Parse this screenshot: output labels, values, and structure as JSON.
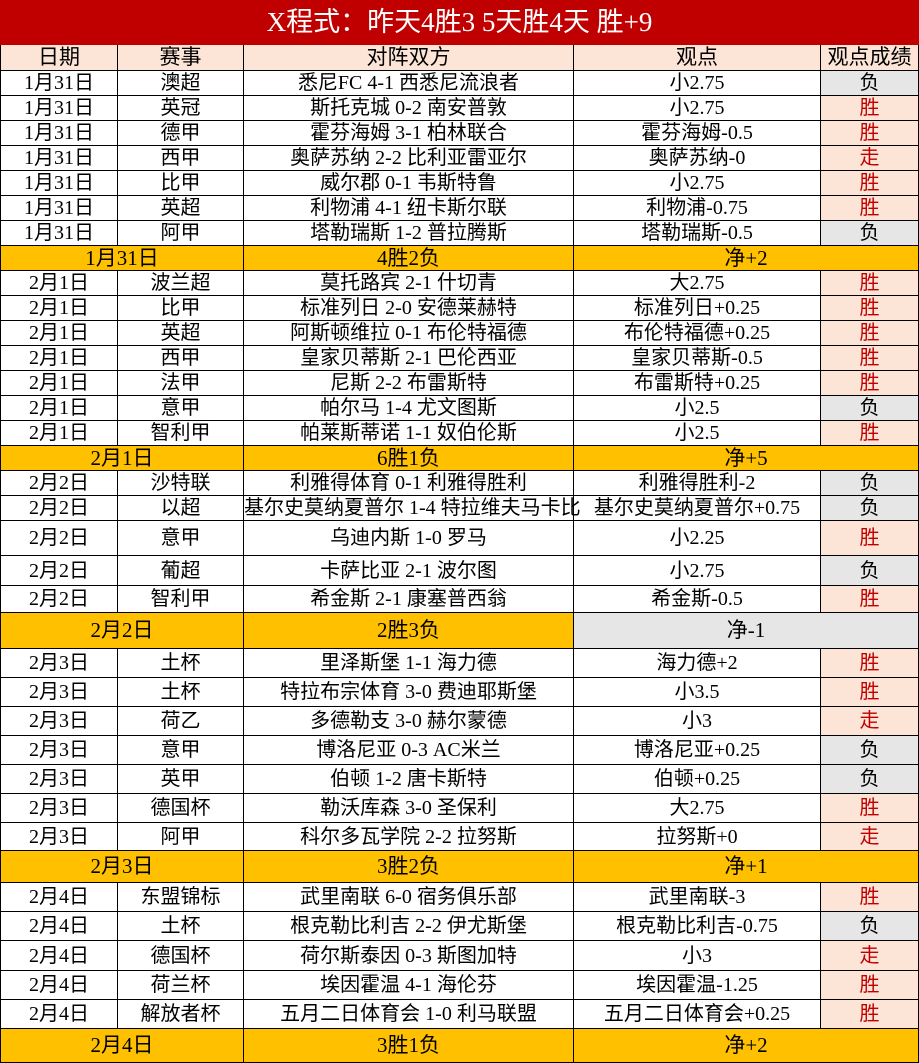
{
  "title": "X程式：昨天4胜3 5天胜4天 胜+9",
  "headers": [
    "日期",
    "赛事",
    "对阵双方",
    "观点",
    "观点成绩"
  ],
  "colors": {
    "title_bg": "#C00000",
    "header_bg": "#FCE4D6",
    "summary_bg": "#FFC000",
    "win_bg": "#FCE4D6",
    "win_text": "#C00000",
    "lose_bg": "#E7E6E6"
  },
  "groups": [
    {
      "rows": [
        [
          "1月31日",
          "澳超",
          "悉尼FC 4-1 西悉尼流浪者",
          "小2.75",
          "负"
        ],
        [
          "1月31日",
          "英冠",
          "斯托克城 0-2 南安普敦",
          "小2.75",
          "胜"
        ],
        [
          "1月31日",
          "德甲",
          "霍芬海姆 3-1 柏林联合",
          "霍芬海姆-0.5",
          "胜"
        ],
        [
          "1月31日",
          "西甲",
          "奥萨苏纳 2-2 比利亚雷亚尔",
          "奥萨苏纳-0",
          "走"
        ],
        [
          "1月31日",
          "比甲",
          "威尔郡 0-1 韦斯特鲁",
          "小2.75",
          "胜"
        ],
        [
          "1月31日",
          "英超",
          "利物浦 4-1 纽卡斯尔联",
          "利物浦-0.75",
          "胜"
        ],
        [
          "1月31日",
          "阿甲",
          "塔勒瑞斯 1-2 普拉腾斯",
          "塔勒瑞斯-0.5",
          "负"
        ]
      ],
      "summary": {
        "date": "1月31日",
        "record": "4胜2负",
        "net": "净+2"
      }
    },
    {
      "rows": [
        [
          "2月1日",
          "波兰超",
          "莫托路宾 2-1 什切青",
          "大2.75",
          "胜"
        ],
        [
          "2月1日",
          "比甲",
          "标准列日 2-0 安德莱赫特",
          "标准列日+0.25",
          "胜"
        ],
        [
          "2月1日",
          "英超",
          "阿斯顿维拉 0-1 布伦特福德",
          "布伦特福德+0.25",
          "胜"
        ],
        [
          "2月1日",
          "西甲",
          "皇家贝蒂斯 2-1 巴伦西亚",
          "皇家贝蒂斯-0.5",
          "胜"
        ],
        [
          "2月1日",
          "法甲",
          "尼斯 2-2 布雷斯特",
          "布雷斯特+0.25",
          "胜"
        ],
        [
          "2月1日",
          "意甲",
          "帕尔马 1-4 尤文图斯",
          "小2.5",
          "负"
        ],
        [
          "2月1日",
          "智利甲",
          "帕莱斯蒂诺 1-1 奴伯伦斯",
          "小2.5",
          "胜"
        ]
      ],
      "summary": {
        "date": "2月1日",
        "record": "6胜1负",
        "net": "净+5"
      }
    },
    {
      "rows": [
        [
          "2月2日",
          "沙特联",
          "利雅得体育 0-1 利雅得胜利",
          "利雅得胜利-2",
          "负"
        ],
        [
          "2月2日",
          "以超",
          "基尔史莫纳夏普尔 1-4 特拉维夫马卡比",
          "基尔史莫纳夏普尔+0.75",
          "负"
        ],
        [
          "2月2日",
          "意甲",
          "乌迪内斯 1-0 罗马",
          "小2.25",
          "胜"
        ],
        [
          "2月2日",
          "葡超",
          "卡萨比亚 2-1 波尔图",
          "小2.75",
          "负"
        ],
        [
          "2月2日",
          "智利甲",
          "希金斯 2-1 康塞普西翁",
          "希金斯-0.5",
          "胜"
        ]
      ],
      "summary": {
        "date": "2月2日",
        "record": "2胜3负",
        "net": "净-1",
        "net_grey": true
      }
    },
    {
      "rows": [
        [
          "2月3日",
          "土杯",
          "里泽斯堡 1-1 海力德",
          "海力德+2",
          "胜"
        ],
        [
          "2月3日",
          "土杯",
          "特拉布宗体育 3-0 费迪耶斯堡",
          "小3.5",
          "胜"
        ],
        [
          "2月3日",
          "荷乙",
          "多德勒支 3-0 赫尔蒙德",
          "小3",
          "走"
        ],
        [
          "2月3日",
          "意甲",
          "博洛尼亚 0-3 AC米兰",
          "博洛尼亚+0.25",
          "负"
        ],
        [
          "2月3日",
          "英甲",
          "伯顿 1-2 唐卡斯特",
          "伯顿+0.25",
          "负"
        ],
        [
          "2月3日",
          "德国杯",
          "勒沃库森 3-0 圣保利",
          "大2.75",
          "胜"
        ],
        [
          "2月3日",
          "阿甲",
          "科尔多瓦学院 2-2 拉努斯",
          "拉努斯+0",
          "走"
        ]
      ],
      "summary": {
        "date": "2月3日",
        "record": "3胜2负",
        "net": "净+1"
      }
    },
    {
      "rows": [
        [
          "2月4日",
          "东盟锦标",
          "武里南联 6-0 宿务俱乐部",
          "武里南联-3",
          "胜"
        ],
        [
          "2月4日",
          "土杯",
          "根克勒比利吉 2-2 伊尤斯堡",
          "根克勒比利吉-0.75",
          "负"
        ],
        [
          "2月4日",
          "德国杯",
          "荷尔斯泰因 0-3 斯图加特",
          "小3",
          "走"
        ],
        [
          "2月4日",
          "荷兰杯",
          "埃因霍温 4-1 海伦芬",
          "埃因霍温-1.25",
          "胜"
        ],
        [
          "2月4日",
          "解放者杯",
          "五月二日体育会 1-0 利马联盟",
          "五月二日体育会+0.25",
          "胜"
        ]
      ],
      "summary": {
        "date": "2月4日",
        "record": "3胜1负",
        "net": "净+2"
      }
    }
  ]
}
